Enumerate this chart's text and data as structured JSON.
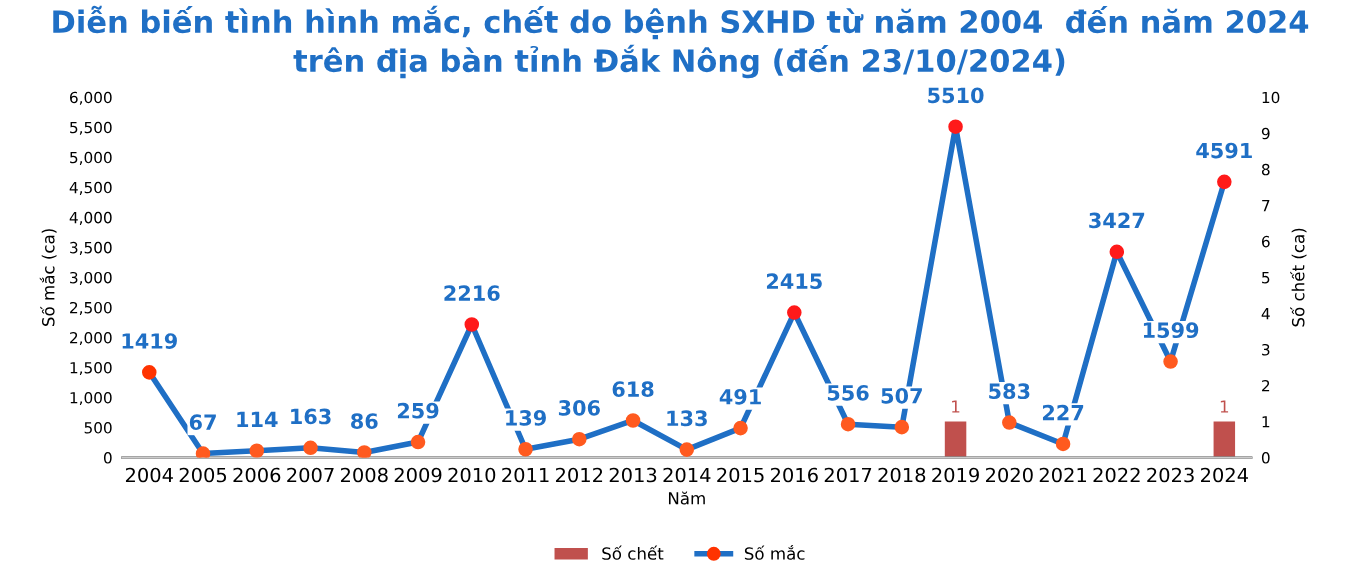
{
  "chart_data": {
    "type": "line",
    "title": "Diễn biến tình hình mắc, chết do bệnh SXHD từ năm 2004  đến năm 2024\ntrên địa bàn tỉnh Đắk Nông (đến 23/10/2024)",
    "xlabel": "Năm",
    "ylabel": "Số mắc (ca)",
    "y2label": "Số chết (ca)",
    "categories": [
      "2004",
      "2005",
      "2006",
      "2007",
      "2008",
      "2009",
      "2010",
      "2011",
      "2012",
      "2013",
      "2014",
      "2015",
      "2016",
      "2017",
      "2018",
      "2019",
      "2020",
      "2021",
      "2022",
      "2023",
      "2024"
    ],
    "series": [
      {
        "name": "Số chết",
        "type": "bar",
        "axis": "y2",
        "color": "#c0504d",
        "values": [
          0,
          0,
          0,
          0,
          0,
          0,
          0,
          0,
          0,
          0,
          0,
          0,
          0,
          0,
          0,
          1,
          0,
          0,
          0,
          0,
          1
        ],
        "value_labels": [
          null,
          null,
          null,
          null,
          null,
          null,
          null,
          null,
          null,
          null,
          null,
          null,
          null,
          null,
          null,
          "1",
          null,
          null,
          null,
          null,
          "1"
        ]
      },
      {
        "name": "Số mắc",
        "color": "#1f6fc5",
        "marker": "circle",
        "colors": [
          "#ff3300",
          "#ff5a1f",
          "#ff5a1f",
          "#ff5a1f",
          "#ff5a1f",
          "#ff5a1f",
          "#ff1a1a",
          "#ff5a1f",
          "#ff5a1f",
          "#ff5a1f",
          "#ff5a1f",
          "#ff5a1f",
          "#ff1a1a",
          "#ff5a1f",
          "#ff5a1f",
          "#ff1a1a",
          "#ff5a1f",
          "#ff5a1f",
          "#ff1a1a",
          "#ff5a1f",
          "#ff1a1a"
        ],
        "values": [
          1419,
          67,
          114,
          163,
          86,
          259,
          2216,
          139,
          306,
          618,
          133,
          491,
          2415,
          556,
          507,
          5510,
          583,
          227,
          3427,
          1599,
          4591
        ],
        "data_labels": true
      }
    ],
    "ylim": [
      0,
      6000
    ],
    "yticks": [
      0,
      {
        "value": 500,
        "label": "500"
      },
      {
        "value": 1000,
        "label": "1,000"
      },
      {
        "value": 1500,
        "label": "1,500"
      },
      {
        "value": 2000,
        "label": "2,000"
      },
      {
        "value": 2500,
        "label": "2,500"
      },
      {
        "value": 3000,
        "label": "3,000"
      },
      {
        "value": 3500,
        "label": "3,500"
      },
      {
        "value": 4000,
        "label": "4,000"
      },
      {
        "value": 4500,
        "label": "4,500"
      },
      {
        "value": 5000,
        "label": "5,000"
      },
      {
        "value": 5500,
        "label": "5,500"
      },
      {
        "value": 6000,
        "label": "6,000"
      }
    ],
    "y2lim": [
      0,
      10
    ],
    "y2ticks": [
      0,
      1,
      2,
      3,
      4,
      5,
      6,
      7,
      8,
      9,
      10
    ],
    "grid": false,
    "legend": "bottom"
  }
}
